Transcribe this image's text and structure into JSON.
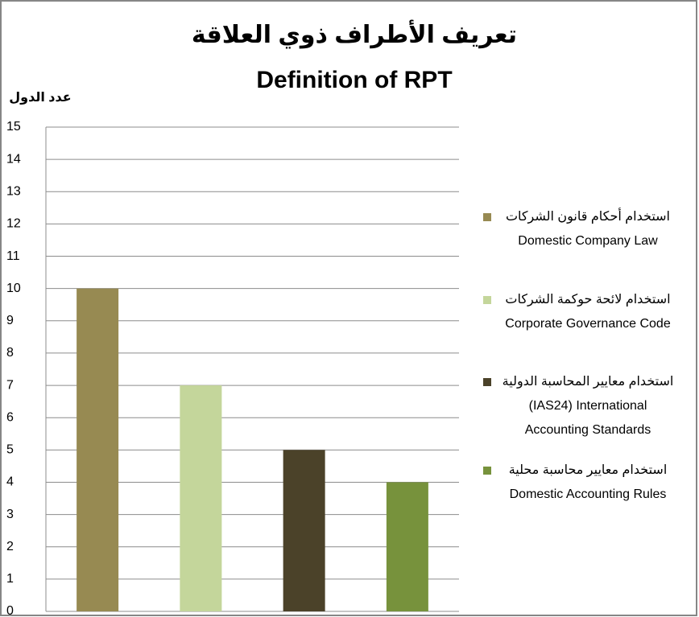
{
  "chart_data": {
    "type": "bar",
    "title": [
      "تعريف الأطراف ذوي العلاقة",
      "Definition of RPT"
    ],
    "y_label": "عدد الدول",
    "series": [
      {
        "name": [
          "استخدام أحكام قانون الشركات",
          "Domestic Company Law"
        ],
        "color": "#978a52",
        "values": [
          10
        ]
      },
      {
        "name": [
          "استخدام لائحة حوكمة الشركات",
          "Corporate Governance Code"
        ],
        "color": "#c4d69b",
        "values": [
          7
        ]
      },
      {
        "name": [
          "استخدام معايير المحاسبة الدولية",
          "(IAS24) International",
          "Accounting Standards"
        ],
        "color": "#4b4229",
        "values": [
          5
        ]
      },
      {
        "name": [
          "استخدام معايير محاسبة محلية",
          "Domestic Accounting Rules"
        ],
        "color": "#77923c",
        "values": [
          4
        ]
      }
    ],
    "ylim": [
      0,
      15
    ],
    "yticks": [
      0,
      1,
      2,
      3,
      4,
      5,
      6,
      7,
      8,
      9,
      10,
      11,
      12,
      13,
      14,
      15
    ],
    "grid": true,
    "legend": "right"
  }
}
